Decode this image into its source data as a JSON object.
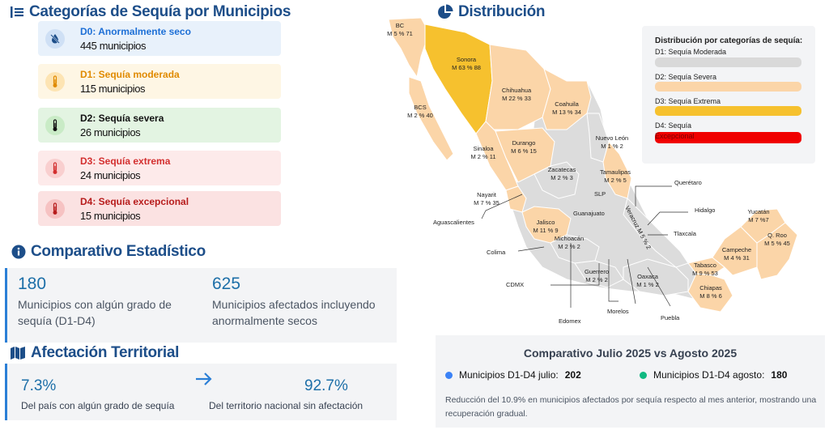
{
  "categories": {
    "title": "Categorías de Sequía por Municipios",
    "items": [
      {
        "label": "D0: Anormalmente seco",
        "count": "445 municipios",
        "bg": "#e8f1fb",
        "color": "#1d6fd6",
        "icon": "water-drop-slash-icon"
      },
      {
        "label": "D1: Sequía moderada",
        "count": "115 municipios",
        "bg": "#fef6e4",
        "color": "#e08a00",
        "icon": "thermometer-icon"
      },
      {
        "label": "D2: Sequía severa",
        "count": "26 municipios",
        "bg": "#e3f4e2",
        "color": "#111111",
        "icon": "thermometer-icon"
      },
      {
        "label": "D3: Sequía extrema",
        "count": "24 municipios",
        "bg": "#fdeaea",
        "color": "#d32f2f",
        "icon": "thermometer-icon"
      },
      {
        "label": "D4: Sequía excepcional",
        "count": "15 municipios",
        "bg": "#fbe2e2",
        "color": "#b71c1c",
        "icon": "thermometer-icon"
      }
    ]
  },
  "stats": {
    "title": "Comparativo Estadístico",
    "a_value": "180",
    "a_desc": "Municipios con algún grado de sequía (D1-D4)",
    "b_value": "625",
    "b_desc": "Municipios afectados incluyendo anormalmente secos"
  },
  "territory": {
    "title": "Afectación Territorial",
    "a_value": "7.3%",
    "a_desc": "Del país con algún grado de sequía",
    "b_value": "92.7%",
    "b_desc": "Del territorio nacional sin afectación"
  },
  "distribution": {
    "title": "Distribución",
    "legend_title": "Distribución por categorías de sequía:",
    "legend": [
      {
        "label": "D1: Sequía Moderada",
        "color": "#d9d9d9"
      },
      {
        "label": "D2: Sequía Severa",
        "color": "#fbd5a8"
      },
      {
        "label": "D3: Sequía Extrema",
        "color": "#f6c12e"
      },
      {
        "label": "D4: Sequía",
        "label2": "Excepcional",
        "color": "#f00000"
      }
    ],
    "labels": {
      "bc": [
        "BC",
        "M 5 % 71"
      ],
      "sonora": [
        "Sonora",
        "M 63 % 88"
      ],
      "chihuahua": [
        "Chihuahua",
        "M 22 % 33"
      ],
      "coahuila": [
        "Coahuila",
        "M 13 % 34"
      ],
      "bcs": [
        "BCS",
        "M 2 % 40"
      ],
      "sinaloa": [
        "Sinaloa",
        "M 2 % 11"
      ],
      "durango": [
        "Durango",
        "M 6 % 15"
      ],
      "nuevoleon": [
        "Nuevo León",
        "M 1 % 2"
      ],
      "tamaulipas": [
        "Tamaulipas",
        "M 2 % 5"
      ],
      "zacatecas": [
        "Zacatecas",
        "M 2 % 3"
      ],
      "nayarit": [
        "Nayarit",
        "M 7 % 35"
      ],
      "jalisco": [
        "Jalisco",
        "M 11 % 9"
      ],
      "michoacan": [
        "Michoacán",
        "M 2 % 2"
      ],
      "guerrero": [
        "Guerrero",
        "M 2 % 2"
      ],
      "oaxaca": [
        "Oaxaca",
        "M 1 % 2"
      ],
      "tabasco": [
        "Tabasco",
        "M 9 % 53"
      ],
      "chiapas": [
        "Chiapas",
        "M 8 % 6"
      ],
      "campeche": [
        "Campeche",
        "M 4 % 31"
      ],
      "yucatan": [
        "Yucatán",
        "M 7 %7"
      ],
      "qroo": [
        "Q. Roo",
        "M 5 % 45"
      ],
      "veracruz": "Veracruz M 5 % 2",
      "slp": "SLP",
      "guanajuato": "Guanajuato",
      "queretaro": "Querétaro",
      "hidalgo": "Hidalgo",
      "tlaxcala": "Tlaxcala",
      "aguascalientes": "Aguascalientes",
      "colima": "Colima",
      "cdmx": "CDMX",
      "edomex": "Edomex",
      "morelos": "Morelos",
      "puebla": "Puebla"
    }
  },
  "comparison": {
    "title": "Comparativo Julio 2025 vs Agosto 2025",
    "july_label": "Municipios D1-D4 julio:",
    "july_value": "202",
    "july_color": "#3b82f6",
    "august_label": "Municipios D1-D4 agosto:",
    "august_value": "180",
    "august_color": "#10b981",
    "note": "Reducción del 10.9% en municipios afectados por sequía respecto al mes anterior, mostrando una recuperación gradual."
  }
}
